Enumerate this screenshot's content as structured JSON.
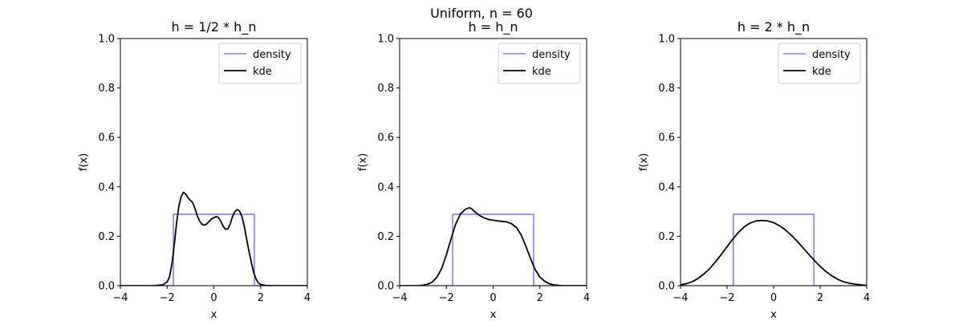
{
  "figure": {
    "suptitle": "Uniform, n = 60"
  },
  "chart_data": [
    {
      "type": "line",
      "title": "h = 1/2 * h_n",
      "xlabel": "x",
      "ylabel": "f(x)",
      "xlim": [
        -4,
        4
      ],
      "ylim": [
        0,
        1.0
      ],
      "xticks": [
        -4,
        -2,
        0,
        2,
        4
      ],
      "yticks": [
        0.0,
        0.2,
        0.4,
        0.6,
        0.8,
        1.0
      ],
      "grid": false,
      "legend": "top-right",
      "series": [
        {
          "name": "density",
          "color": "#8080ff",
          "x": [
            -4,
            -1.732,
            -1.732,
            1.732,
            1.732,
            4
          ],
          "y": [
            0,
            0,
            0.2887,
            0.2887,
            0,
            0
          ]
        },
        {
          "name": "kde",
          "color": "#000000",
          "x": [
            -4,
            -2.6,
            -2.2,
            -2.0,
            -1.9,
            -1.8,
            -1.7,
            -1.6,
            -1.5,
            -1.4,
            -1.3,
            -1.2,
            -1.1,
            -1.0,
            -0.9,
            -0.8,
            -0.7,
            -0.6,
            -0.5,
            -0.4,
            -0.3,
            -0.2,
            -0.1,
            0.0,
            0.1,
            0.2,
            0.3,
            0.4,
            0.5,
            0.6,
            0.7,
            0.8,
            0.9,
            1.0,
            1.1,
            1.2,
            1.3,
            1.4,
            1.5,
            1.6,
            1.7,
            1.8,
            1.9,
            2.0,
            2.2,
            2.6,
            4
          ],
          "y": [
            0,
            0,
            0.003,
            0.015,
            0.035,
            0.085,
            0.16,
            0.25,
            0.32,
            0.36,
            0.378,
            0.37,
            0.355,
            0.345,
            0.335,
            0.31,
            0.28,
            0.26,
            0.248,
            0.245,
            0.25,
            0.26,
            0.27,
            0.275,
            0.28,
            0.275,
            0.26,
            0.24,
            0.228,
            0.23,
            0.25,
            0.28,
            0.3,
            0.308,
            0.302,
            0.28,
            0.24,
            0.19,
            0.14,
            0.095,
            0.055,
            0.028,
            0.012,
            0.005,
            0.001,
            0,
            0
          ]
        }
      ]
    },
    {
      "type": "line",
      "title": "h = h_n",
      "xlabel": "x",
      "ylabel": "f(x)",
      "xlim": [
        -4,
        4
      ],
      "ylim": [
        0,
        1.0
      ],
      "xticks": [
        -4,
        -2,
        0,
        2,
        4
      ],
      "yticks": [
        0.0,
        0.2,
        0.4,
        0.6,
        0.8,
        1.0
      ],
      "grid": false,
      "legend": "top-right",
      "series": [
        {
          "name": "density",
          "color": "#8080ff",
          "x": [
            -4,
            -1.732,
            -1.732,
            1.732,
            1.732,
            4
          ],
          "y": [
            0,
            0,
            0.2887,
            0.2887,
            0,
            0
          ]
        },
        {
          "name": "kde",
          "color": "#000000",
          "x": [
            -4,
            -3.2,
            -3.0,
            -2.8,
            -2.6,
            -2.4,
            -2.2,
            -2.0,
            -1.8,
            -1.6,
            -1.4,
            -1.2,
            -1.1,
            -1.0,
            -0.9,
            -0.8,
            -0.6,
            -0.4,
            -0.2,
            0.0,
            0.2,
            0.4,
            0.6,
            0.8,
            1.0,
            1.2,
            1.4,
            1.6,
            1.8,
            2.0,
            2.2,
            2.4,
            2.6,
            2.8,
            3.0,
            3.2,
            4
          ],
          "y": [
            0,
            0,
            0.002,
            0.006,
            0.015,
            0.035,
            0.07,
            0.125,
            0.19,
            0.25,
            0.29,
            0.308,
            0.313,
            0.315,
            0.31,
            0.3,
            0.285,
            0.275,
            0.268,
            0.265,
            0.262,
            0.26,
            0.258,
            0.25,
            0.235,
            0.205,
            0.16,
            0.11,
            0.065,
            0.035,
            0.018,
            0.008,
            0.003,
            0.001,
            0,
            0,
            0
          ]
        }
      ]
    },
    {
      "type": "line",
      "title": "h = 2 * h_n",
      "xlabel": "x",
      "ylabel": "f(x)",
      "xlim": [
        -4,
        4
      ],
      "ylim": [
        0,
        1.0
      ],
      "xticks": [
        -4,
        -2,
        0,
        2,
        4
      ],
      "yticks": [
        0.0,
        0.2,
        0.4,
        0.6,
        0.8,
        1.0
      ],
      "grid": false,
      "legend": "top-right",
      "series": [
        {
          "name": "density",
          "color": "#8080ff",
          "x": [
            -4,
            -1.732,
            -1.732,
            1.732,
            1.732,
            4
          ],
          "y": [
            0,
            0,
            0.2887,
            0.2887,
            0,
            0
          ]
        },
        {
          "name": "kde",
          "color": "#000000",
          "x": [
            -4.0,
            -3.75,
            -3.5,
            -3.25,
            -3.0,
            -2.75,
            -2.5,
            -2.25,
            -2.0,
            -1.75,
            -1.5,
            -1.25,
            -1.0,
            -0.75,
            -0.5,
            -0.25,
            0.0,
            0.25,
            0.5,
            0.75,
            1.0,
            1.25,
            1.5,
            1.75,
            2.0,
            2.25,
            2.5,
            2.75,
            3.0,
            3.25,
            3.5,
            3.75,
            4.0
          ],
          "y": [
            0.003,
            0.008,
            0.016,
            0.029,
            0.047,
            0.069,
            0.096,
            0.126,
            0.158,
            0.189,
            0.217,
            0.239,
            0.254,
            0.262,
            0.264,
            0.262,
            0.255,
            0.243,
            0.226,
            0.205,
            0.181,
            0.155,
            0.128,
            0.102,
            0.078,
            0.057,
            0.04,
            0.026,
            0.016,
            0.01,
            0.006,
            0.003,
            0.001
          ]
        }
      ]
    }
  ]
}
